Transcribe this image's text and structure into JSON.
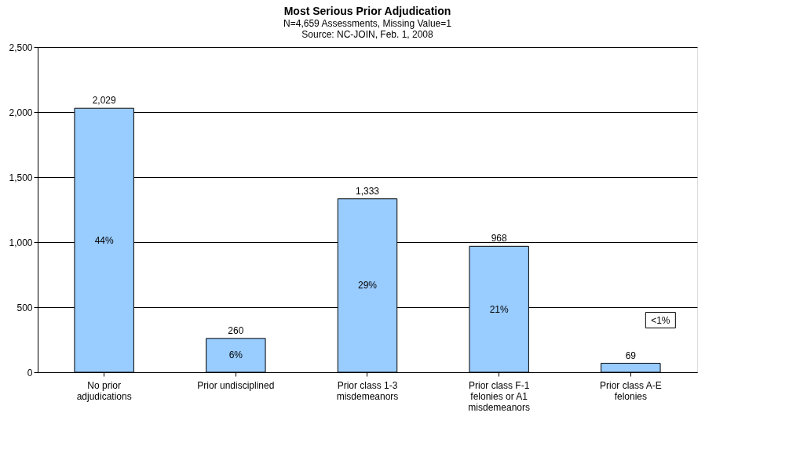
{
  "chart_data": {
    "type": "bar",
    "title": "Most Serious Prior Adjudication",
    "subtitle": [
      "N=4,659 Assessments, Missing Value=1",
      "Source: NC-JOIN, Feb. 1, 2008"
    ],
    "categories": [
      "No prior adjudications",
      "Prior undisciplined",
      "Prior class 1-3 misdemeanors",
      "Prior class F-1 felonies or A1 misdemeanors",
      "Prior class A-E felonies"
    ],
    "values": [
      2029,
      260,
      1333,
      968,
      69
    ],
    "color": "#99ccff",
    "value_labels": [
      "2,029",
      "260",
      "1,333",
      "968",
      "69"
    ],
    "ylim": [
      0,
      2500
    ],
    "yticks": [
      {
        "value": 0,
        "label": "0"
      },
      {
        "value": 500,
        "label": "500"
      },
      {
        "value": 1000,
        "label": "1,000"
      },
      {
        "value": 1500,
        "label": "1,500"
      },
      {
        "value": 2000,
        "label": "2,000"
      },
      {
        "value": 2500,
        "label": "2,500"
      }
    ],
    "grid": "y",
    "annotations": [
      "44%",
      "6%",
      "29%",
      "21%",
      "<1%"
    ]
  }
}
